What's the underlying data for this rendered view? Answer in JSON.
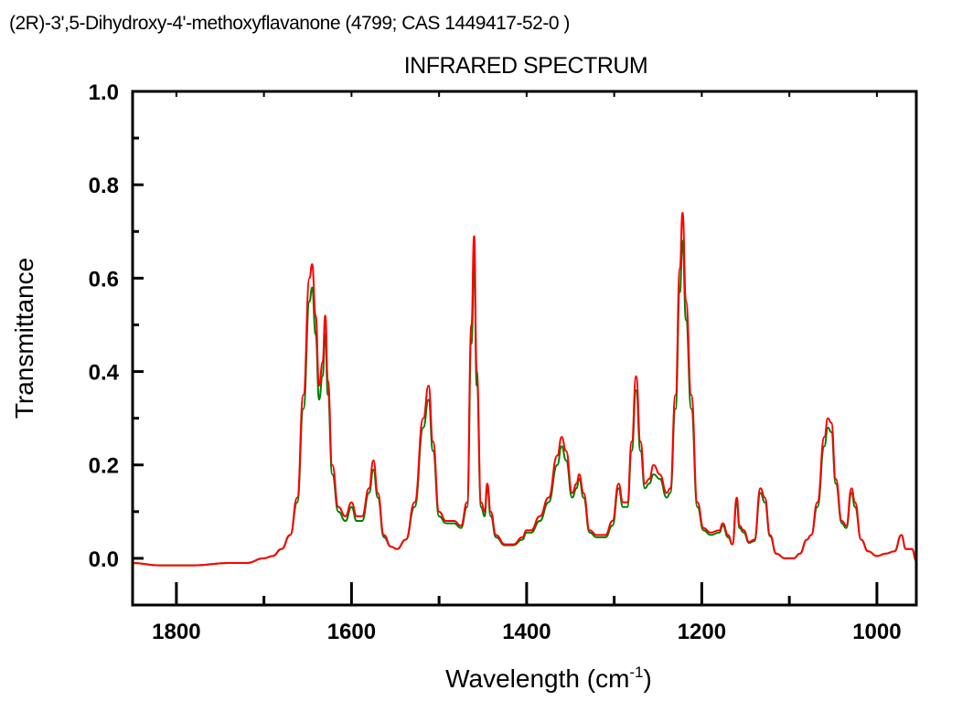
{
  "header": {
    "compound": "(2R)-3',5-Dihydroxy-4'-methoxyflavanone (4799; CAS 1449417-52-0 )"
  },
  "chart_data": {
    "type": "line",
    "title": "INFRARED SPECTRUM",
    "xlabel": "Wavelength (cm-1)",
    "xlabel_base": "Wavelength (cm",
    "xlabel_sup": "-1",
    "xlabel_end": ")",
    "ylabel": "Transmittance",
    "xlim": [
      1850,
      955
    ],
    "ylim": [
      -0.1,
      1.0
    ],
    "x_ticks": [
      1800,
      1600,
      1400,
      1200,
      1000
    ],
    "x_tick_labels": [
      "1800",
      "1600",
      "1400",
      "1200",
      "1000"
    ],
    "y_ticks": [
      0.0,
      0.2,
      0.4,
      0.6,
      0.8,
      1.0
    ],
    "y_tick_labels": [
      "0.0",
      "0.2",
      "0.4",
      "0.6",
      "0.8",
      "1.0"
    ],
    "grid": false,
    "x": [
      1850,
      1820,
      1780,
      1740,
      1720,
      1700,
      1690,
      1680,
      1670,
      1662,
      1655,
      1648,
      1645,
      1641,
      1637,
      1633,
      1630,
      1627,
      1622,
      1615,
      1607,
      1600,
      1594,
      1588,
      1580,
      1575,
      1570,
      1563,
      1555,
      1548,
      1538,
      1528,
      1518,
      1512,
      1507,
      1500,
      1492,
      1483,
      1475,
      1468,
      1463,
      1460,
      1457,
      1452,
      1448,
      1445,
      1441,
      1435,
      1425,
      1415,
      1405,
      1400,
      1395,
      1385,
      1375,
      1365,
      1360,
      1355,
      1348,
      1343,
      1340,
      1335,
      1328,
      1320,
      1310,
      1302,
      1295,
      1290,
      1285,
      1280,
      1275,
      1270,
      1265,
      1260,
      1255,
      1248,
      1240,
      1236,
      1230,
      1225,
      1222,
      1218,
      1212,
      1205,
      1198,
      1190,
      1180,
      1176,
      1170,
      1165,
      1160,
      1157,
      1152,
      1146,
      1140,
      1133,
      1128,
      1122,
      1115,
      1105,
      1095,
      1088,
      1080,
      1075,
      1068,
      1060,
      1056,
      1052,
      1047,
      1040,
      1035,
      1029,
      1025,
      1018,
      1010,
      1000,
      990,
      980,
      972,
      967,
      960,
      955
    ],
    "series": [
      {
        "name": "red",
        "color": "#ff0000",
        "values": [
          -0.01,
          -0.015,
          -0.015,
          -0.01,
          -0.01,
          0.0,
          0.005,
          0.02,
          0.05,
          0.13,
          0.35,
          0.6,
          0.63,
          0.52,
          0.37,
          0.42,
          0.52,
          0.38,
          0.2,
          0.11,
          0.09,
          0.12,
          0.09,
          0.09,
          0.15,
          0.21,
          0.14,
          0.05,
          0.025,
          0.02,
          0.04,
          0.12,
          0.3,
          0.37,
          0.25,
          0.1,
          0.08,
          0.08,
          0.07,
          0.12,
          0.5,
          0.69,
          0.4,
          0.12,
          0.1,
          0.16,
          0.1,
          0.05,
          0.03,
          0.03,
          0.045,
          0.06,
          0.06,
          0.09,
          0.13,
          0.22,
          0.26,
          0.23,
          0.14,
          0.16,
          0.18,
          0.14,
          0.06,
          0.05,
          0.05,
          0.08,
          0.16,
          0.12,
          0.12,
          0.25,
          0.39,
          0.25,
          0.16,
          0.17,
          0.2,
          0.18,
          0.14,
          0.15,
          0.35,
          0.62,
          0.74,
          0.55,
          0.35,
          0.12,
          0.065,
          0.055,
          0.06,
          0.075,
          0.05,
          0.03,
          0.13,
          0.07,
          0.06,
          0.035,
          0.04,
          0.15,
          0.13,
          0.05,
          0.01,
          0.0,
          0.0,
          0.01,
          0.04,
          0.05,
          0.12,
          0.26,
          0.3,
          0.29,
          0.17,
          0.08,
          0.07,
          0.15,
          0.12,
          0.04,
          0.015,
          0.005,
          0.01,
          0.015,
          0.05,
          0.02,
          0.02,
          -0.005
        ]
      },
      {
        "name": "green",
        "color": "#008000",
        "values": [
          -0.01,
          -0.015,
          -0.015,
          -0.01,
          -0.01,
          0.0,
          0.005,
          0.02,
          0.05,
          0.12,
          0.32,
          0.55,
          0.58,
          0.48,
          0.34,
          0.39,
          0.48,
          0.35,
          0.18,
          0.1,
          0.08,
          0.11,
          0.08,
          0.08,
          0.14,
          0.19,
          0.13,
          0.045,
          0.025,
          0.02,
          0.04,
          0.11,
          0.28,
          0.34,
          0.23,
          0.09,
          0.075,
          0.075,
          0.065,
          0.11,
          0.46,
          0.63,
          0.37,
          0.11,
          0.09,
          0.15,
          0.09,
          0.045,
          0.028,
          0.028,
          0.04,
          0.055,
          0.055,
          0.08,
          0.12,
          0.2,
          0.24,
          0.21,
          0.13,
          0.15,
          0.17,
          0.13,
          0.055,
          0.045,
          0.045,
          0.07,
          0.15,
          0.11,
          0.11,
          0.23,
          0.36,
          0.23,
          0.15,
          0.16,
          0.18,
          0.17,
          0.13,
          0.14,
          0.32,
          0.57,
          0.68,
          0.51,
          0.32,
          0.11,
          0.06,
          0.05,
          0.055,
          0.07,
          0.045,
          0.03,
          0.12,
          0.065,
          0.055,
          0.033,
          0.037,
          0.14,
          0.12,
          0.047,
          0.01,
          0.0,
          0.0,
          0.01,
          0.04,
          0.05,
          0.11,
          0.24,
          0.28,
          0.27,
          0.16,
          0.075,
          0.065,
          0.14,
          0.11,
          0.04,
          0.015,
          0.005,
          0.01,
          0.015,
          0.05,
          0.02,
          0.02,
          -0.005
        ]
      }
    ]
  }
}
